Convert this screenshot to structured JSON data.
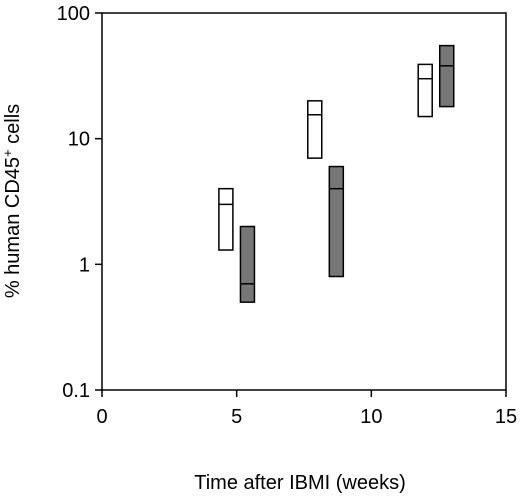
{
  "chart_data": {
    "type": "box",
    "title": "",
    "xlabel": "Time after IBMI (weeks)",
    "ylabel_prefix": "% human CD45",
    "ylabel_sup": "+",
    "ylabel_suffix": " cells",
    "x_ticks": [
      "0",
      "5",
      "10",
      "15"
    ],
    "x_tick_values": [
      0,
      5,
      10,
      15
    ],
    "y_ticks": [
      "0.1",
      "1",
      "10",
      "100"
    ],
    "y_tick_values": [
      0.1,
      1,
      10,
      100
    ],
    "xlim": [
      0,
      15
    ],
    "ylim": [
      0.1,
      100
    ],
    "y_scale": "log",
    "grid": false,
    "legend": "none",
    "series": [
      {
        "fill": "#ffffff",
        "boxes": [
          {
            "x": 4.6,
            "low": 1.3,
            "median": 3.0,
            "high": 4.0
          },
          {
            "x": 7.9,
            "low": 7.0,
            "median": 15.5,
            "high": 20.0
          },
          {
            "x": 12.0,
            "low": 15.0,
            "median": 30.0,
            "high": 39.0
          }
        ]
      },
      {
        "fill": "#777777",
        "boxes": [
          {
            "x": 5.4,
            "low": 0.5,
            "median": 0.7,
            "high": 2.0
          },
          {
            "x": 8.7,
            "low": 0.8,
            "median": 4.0,
            "high": 6.0
          },
          {
            "x": 12.8,
            "low": 18.0,
            "median": 38.0,
            "high": 55.0
          }
        ]
      }
    ]
  }
}
